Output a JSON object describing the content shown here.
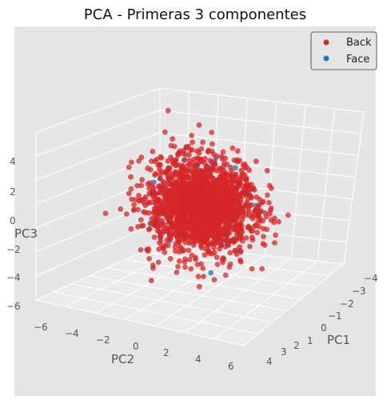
{
  "chart_data": {
    "type": "scatter",
    "title": "PCA  - Primeras 3 componentes",
    "axes": {
      "x": {
        "label": "PC1",
        "ticks": [
          "−4",
          "−3",
          "−2",
          "−1",
          "0",
          "1",
          "2",
          "3",
          "4"
        ]
      },
      "y": {
        "label": "PC2",
        "ticks": [
          "−6",
          "−4",
          "−2",
          "0",
          "2",
          "4",
          "6"
        ]
      },
      "z": {
        "label": "PC3",
        "ticks": [
          "4",
          "2",
          "0",
          "−2",
          "−4",
          "−6"
        ]
      }
    },
    "xlim": [
      -4,
      4
    ],
    "ylim": [
      -6,
      6
    ],
    "zlim": [
      -6,
      6
    ],
    "grid": true,
    "legend_position": "top-right",
    "series": [
      {
        "name": "Back",
        "color": "#d62728",
        "spread": 1.6,
        "count": 1900
      },
      {
        "name": "Face",
        "color": "#1f77b4",
        "spread": 1.3,
        "count": 160
      }
    ]
  }
}
